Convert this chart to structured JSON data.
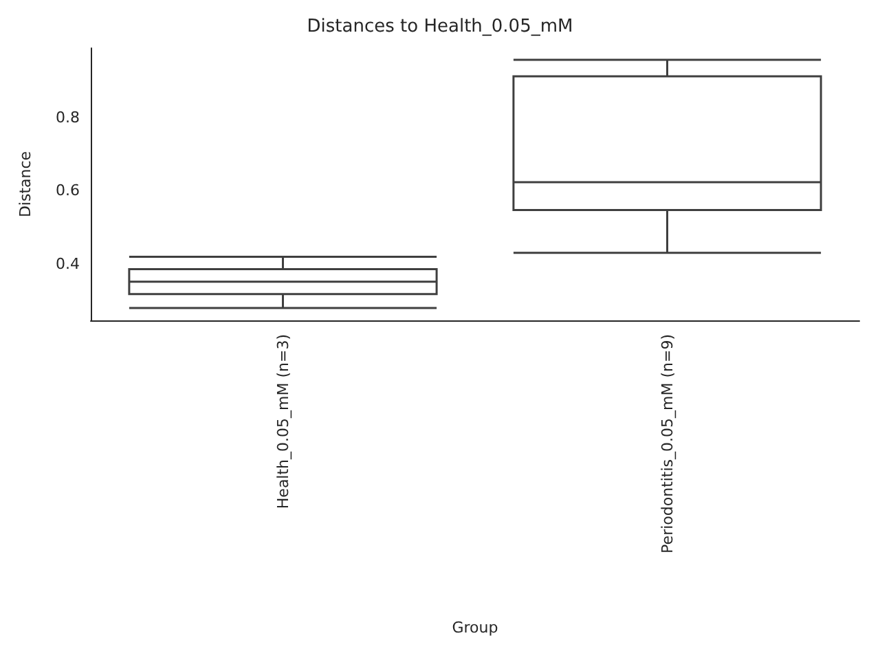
{
  "chart_data": {
    "type": "box",
    "title": "Distances to Health_0.05_mM",
    "xlabel": "Group",
    "ylabel": "Distance",
    "categories": [
      "Health_0.05_mM (n=3)",
      "Periodontitis_0.05_mM (n=9)"
    ],
    "boxes": [
      {
        "low": 0.279,
        "q1": 0.317,
        "median": 0.351,
        "q3": 0.385,
        "high": 0.419
      },
      {
        "low": 0.43,
        "q1": 0.547,
        "median": 0.623,
        "q3": 0.913,
        "high": 0.958
      }
    ],
    "color": "#3f3f3f",
    "ylim": [
      0.245,
      0.99
    ],
    "yticks": [
      0.4,
      0.6,
      0.8
    ],
    "grid": false
  }
}
